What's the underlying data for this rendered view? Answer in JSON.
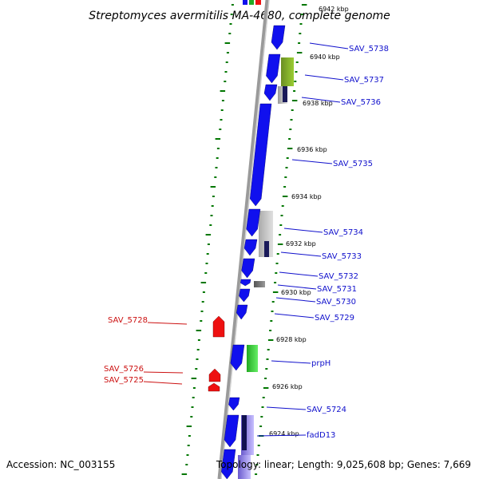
{
  "title": "Streptomyces avermitilis MA-4680, complete genome",
  "footer": {
    "accession": "Accession: NC_003155",
    "summary": "Topology: linear; Length: 9,025,608 bp; Genes: 7,669"
  },
  "colors": {
    "forward_gene": "#1010ee",
    "reverse_gene": "#ee1111",
    "forward_label": "#1010cc",
    "reverse_label": "#cc1111",
    "ruler_tick": "#007700",
    "strand_axis": "#888888"
  },
  "ruler_labels": [
    "6942 kbp",
    "6940 kbp",
    "6938 kbp",
    "6936 kbp",
    "6934 kbp",
    "6932 kbp",
    "6930 kbp",
    "6928 kbp",
    "6926 kbp",
    "6924 kbp"
  ],
  "forward_genes": [
    "SAV_5738",
    "SAV_5737",
    "SAV_5736",
    "SAV_5735",
    "SAV_5734",
    "SAV_5733",
    "SAV_5732",
    "SAV_5731",
    "SAV_5730",
    "SAV_5729",
    "prpH",
    "SAV_5724",
    "fadD13"
  ],
  "reverse_genes": [
    "SAV_5728",
    "SAV_5726",
    "SAV_5725"
  ]
}
